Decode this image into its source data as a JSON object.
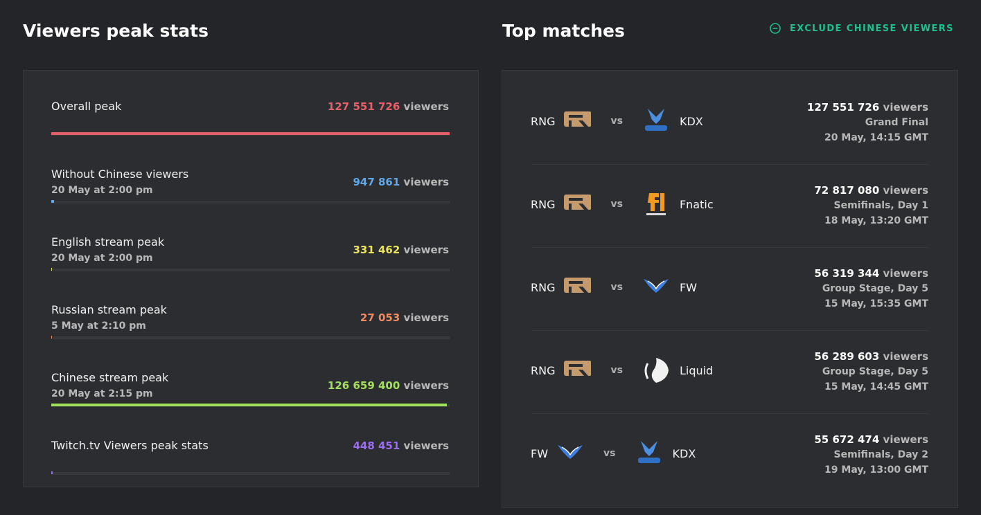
{
  "left": {
    "title": "Viewers peak stats",
    "unit": "viewers",
    "stats": [
      {
        "label": "Overall peak",
        "value": {
          "value": 127551726,
          "label": "127 551 726"
        },
        "color": "#e8606a"
      },
      {
        "label": "Without Chinese viewers",
        "date": "20 May at 2:00 pm",
        "value": {
          "value": 947861,
          "label": "947 861"
        },
        "color": "#5fa8ea"
      },
      {
        "label": "English stream peak",
        "date": "20 May at 2:00 pm",
        "value": {
          "value": 331462,
          "label": "331 462"
        },
        "color": "#ece35c"
      },
      {
        "label": "Russian stream peak",
        "date": "5 May at 2:10 pm",
        "value": {
          "value": 27053,
          "label": "27 053"
        },
        "color": "#f28b62"
      },
      {
        "label": "Chinese stream peak",
        "date": "20 May at 2:15 pm",
        "value": {
          "value": 126659400,
          "label": "126 659 400"
        },
        "color": "#a3e05c"
      },
      {
        "label": "Twitch.tv Viewers peak stats",
        "value": {
          "value": 448451,
          "label": "448 451"
        },
        "color": "#9c6cf2"
      }
    ]
  },
  "right": {
    "title": "Top matches",
    "toggle": "EXCLUDE CHINESE VIEWERS",
    "vs": "vs",
    "unit": "viewers",
    "matches": [
      {
        "team1": "RNG",
        "team2": "KDX",
        "viewers": "127 551 726",
        "stage": "Grand Final",
        "date": "20 May, 14:15 GMT"
      },
      {
        "team1": "RNG",
        "team2": "Fnatic",
        "viewers": "72 817 080",
        "stage": "Semifinals, Day 1",
        "date": "18 May, 13:20 GMT"
      },
      {
        "team1": "RNG",
        "team2": "FW",
        "viewers": "56 319 344",
        "stage": "Group Stage, Day 5",
        "date": "15 May, 15:35 GMT"
      },
      {
        "team1": "RNG",
        "team2": "Liquid",
        "viewers": "56 289 603",
        "stage": "Group Stage, Day 5",
        "date": "15 May, 14:45 GMT"
      },
      {
        "team1": "FW",
        "team2": "KDX",
        "viewers": "55 672 474",
        "stage": "Semifinals, Day 2",
        "date": "19 May, 13:00 GMT"
      }
    ]
  }
}
